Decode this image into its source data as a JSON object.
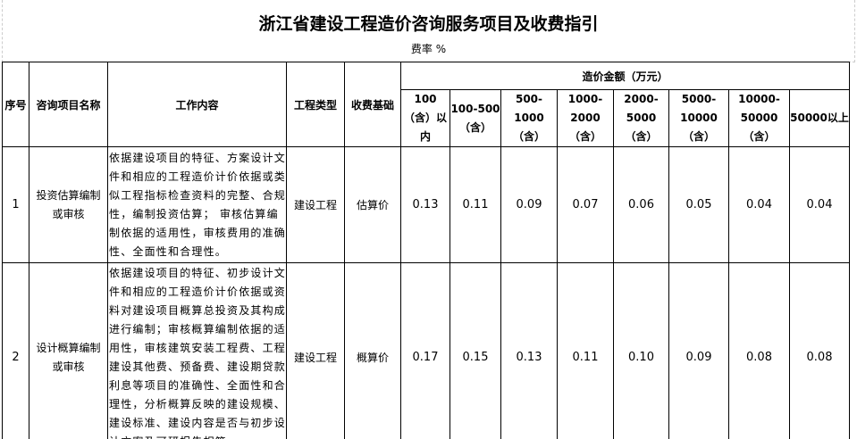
{
  "title": "浙江省建设工程造价咨询服务项目及收费指引",
  "subtitle": "费率 %",
  "headers": {
    "seq": "序号",
    "name": "咨询项目名称",
    "work": "工作内容",
    "type": "工程类型",
    "basis": "收费基础",
    "amount": "造价金额（万元）",
    "ranges": [
      "100（含）以内",
      "100-500（含）",
      "500-1000（含）",
      "1000-2000（含）",
      "2000-5000（含）",
      "5000-10000（含）",
      "10000-50000（含）",
      "50000以上"
    ]
  },
  "rows": [
    {
      "seq": "1",
      "name": "投资估算编制或审核",
      "work": "依据建设项目的特征、方案设计文件和相应的工程造价计价依据或类似工程指标检查资料的完整、合规性，编制投资估算； 审核估算编制依据的适用性，审核费用的准确性、全面性和合理性。",
      "type": "建设工程",
      "basis": "估算价",
      "rates": [
        "0.13",
        "0.11",
        "0.09",
        "0.07",
        "0.06",
        "0.05",
        "0.04",
        "0.04"
      ]
    },
    {
      "seq": "2",
      "name": "设计概算编制或审核",
      "work": "依据建设项目的特征、初步设计文件和相应的工程造价计价依据或资料对建设项目概算总投资及其构成进行编制；审核概算编制依据的适用性，审核建筑安装工程费、工程建设其他费、预备费、建设期贷款利息等项目的准确性、全面性和合理性，分析概算反映的建设规模、建设标准、建设内容是否与初步设计方案及可研报告相符。",
      "type": "建设工程",
      "basis": "概算价",
      "rates": [
        "0.17",
        "0.15",
        "0.13",
        "0.11",
        "0.10",
        "0.09",
        "0.08",
        "0.08"
      ]
    }
  ]
}
